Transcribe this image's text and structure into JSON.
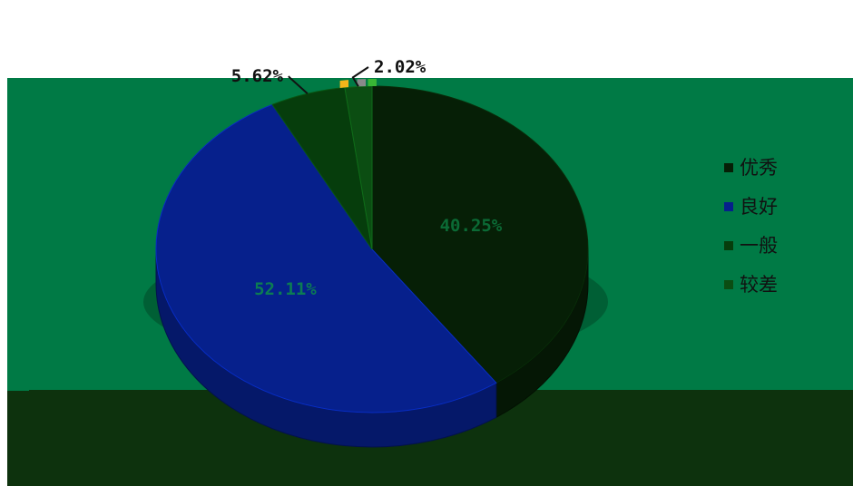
{
  "chart_data": {
    "type": "pie",
    "title": "",
    "series": [
      {
        "name": "优秀",
        "value": 40.25,
        "label": "40.25%",
        "color": "#061f06"
      },
      {
        "name": "良好",
        "value": 52.11,
        "label": "52.11%",
        "color": "#06208c"
      },
      {
        "name": "一般",
        "value": 5.62,
        "label": "5.62%",
        "color": "#063d0c"
      },
      {
        "name": "较差",
        "value": 2.02,
        "label": "2.02%",
        "color": "#0b4d12"
      }
    ],
    "legend": {
      "position": "right",
      "entries": [
        "优秀",
        "良好",
        "一般",
        "较差"
      ]
    },
    "style": {
      "background_upper": "#ffffff",
      "background_band": "#007a45",
      "background_lower": "#0d320d",
      "outside_accents": [
        "#f3b51a",
        "#8a8a8a",
        "#39b735"
      ]
    }
  }
}
